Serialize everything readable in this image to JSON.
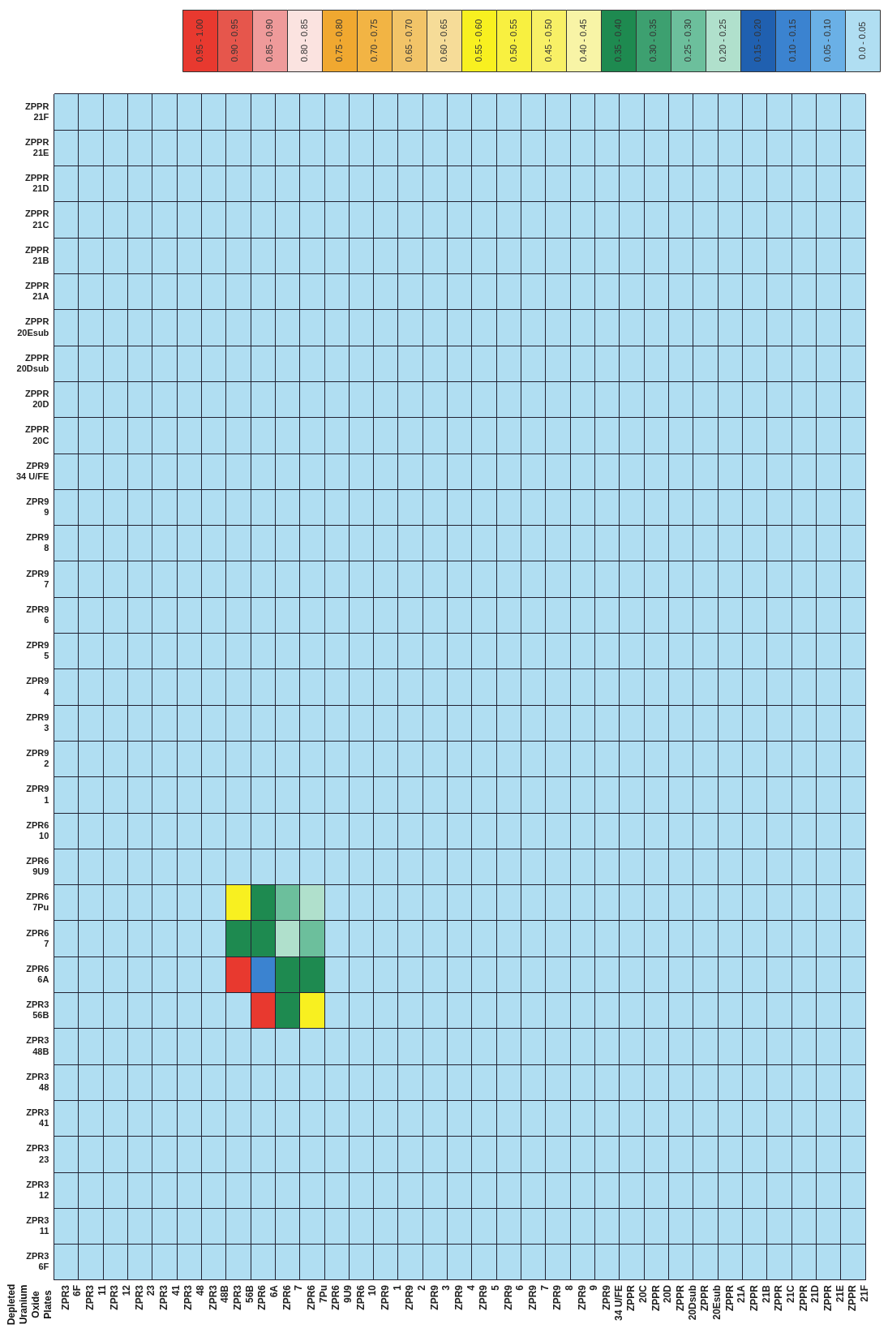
{
  "chart_data": {
    "type": "heatmap",
    "title": "Depleted Uranium Oxide Plates",
    "categories": [
      "ZPR3 6F",
      "ZPR3 11",
      "ZPR3 12",
      "ZPR3 23",
      "ZPR3 41",
      "ZPR3 48",
      "ZPR3 48B",
      "ZPR3 56B",
      "ZPR6 6A",
      "ZPR6 7",
      "ZPR6 7Pu",
      "ZPR6 9U9",
      "ZPR6 10",
      "ZPR9 1",
      "ZPR9 2",
      "ZPR9 3",
      "ZPR9 4",
      "ZPR9 5",
      "ZPR9 6",
      "ZPR9 7",
      "ZPR9 8",
      "ZPR9 9",
      "ZPR9 34 U/FE",
      "ZPPR 20C",
      "ZPPR 20D",
      "ZPPR 20Dsub",
      "ZPPR 20Esub",
      "ZPPR 21A",
      "ZPPR 21B",
      "ZPPR 21C",
      "ZPPR 21D",
      "ZPPR 21E",
      "ZPPR 21F"
    ],
    "y_categories": [
      "ZPPR 21F",
      "ZPPR 21E",
      "ZPPR 21D",
      "ZPPR 21C",
      "ZPPR 21B",
      "ZPPR 21A",
      "ZPPR 20Esub",
      "ZPPR 20Dsub",
      "ZPPR 20D",
      "ZPPR 20C",
      "ZPR9 34 U/FE",
      "ZPR9 9",
      "ZPR9 8",
      "ZPR9 7",
      "ZPR9 6",
      "ZPR9 5",
      "ZPR9 4",
      "ZPR9 3",
      "ZPR9 2",
      "ZPR9 1",
      "ZPR6 10",
      "ZPR6 9U9",
      "ZPR6 7Pu",
      "ZPR6 7",
      "ZPR6 6A",
      "ZPR3 56B",
      "ZPR3 48B",
      "ZPR3 48",
      "ZPR3 41",
      "ZPR3 23",
      "ZPR3 12",
      "ZPR3 11",
      "ZPR3 6F"
    ],
    "cells": [
      [
        0.025,
        0.025,
        0.025,
        0.025,
        0.025,
        0.025,
        0.025,
        0.025,
        0.025,
        0.025,
        0.025,
        0.025,
        0.025,
        0.025,
        0.025,
        0.025,
        0.025,
        0.025,
        0.025,
        0.025,
        0.025,
        0.025,
        0.025,
        0.025,
        0.025,
        0.025,
        0.025,
        0.025,
        0.025,
        0.025,
        0.025,
        0.025,
        0.025
      ],
      [
        0.025,
        0.025,
        0.025,
        0.025,
        0.025,
        0.025,
        0.025,
        0.025,
        0.025,
        0.025,
        0.025,
        0.025,
        0.025,
        0.025,
        0.025,
        0.025,
        0.025,
        0.025,
        0.025,
        0.025,
        0.025,
        0.025,
        0.025,
        0.025,
        0.025,
        0.025,
        0.025,
        0.025,
        0.025,
        0.025,
        0.025,
        0.025,
        0.025
      ],
      [
        0.025,
        0.025,
        0.025,
        0.025,
        0.025,
        0.025,
        0.025,
        0.025,
        0.025,
        0.025,
        0.025,
        0.025,
        0.025,
        0.025,
        0.025,
        0.025,
        0.025,
        0.025,
        0.025,
        0.025,
        0.025,
        0.025,
        0.025,
        0.025,
        0.025,
        0.025,
        0.025,
        0.025,
        0.025,
        0.025,
        0.025,
        0.025,
        0.025
      ],
      [
        0.025,
        0.025,
        0.025,
        0.025,
        0.025,
        0.025,
        0.025,
        0.025,
        0.025,
        0.025,
        0.025,
        0.025,
        0.025,
        0.025,
        0.025,
        0.025,
        0.025,
        0.025,
        0.025,
        0.025,
        0.025,
        0.025,
        0.025,
        0.025,
        0.025,
        0.025,
        0.025,
        0.025,
        0.025,
        0.025,
        0.025,
        0.025,
        0.025
      ],
      [
        0.025,
        0.025,
        0.025,
        0.025,
        0.025,
        0.025,
        0.025,
        0.025,
        0.025,
        0.025,
        0.025,
        0.025,
        0.025,
        0.025,
        0.025,
        0.025,
        0.025,
        0.025,
        0.025,
        0.025,
        0.025,
        0.025,
        0.025,
        0.025,
        0.025,
        0.025,
        0.025,
        0.025,
        0.025,
        0.025,
        0.025,
        0.025,
        0.025
      ],
      [
        0.025,
        0.025,
        0.025,
        0.025,
        0.025,
        0.025,
        0.025,
        0.025,
        0.025,
        0.025,
        0.025,
        0.025,
        0.025,
        0.025,
        0.025,
        0.025,
        0.025,
        0.025,
        0.025,
        0.025,
        0.025,
        0.025,
        0.025,
        0.025,
        0.025,
        0.025,
        0.025,
        0.025,
        0.025,
        0.025,
        0.025,
        0.025,
        0.025
      ],
      [
        0.025,
        0.025,
        0.025,
        0.025,
        0.025,
        0.025,
        0.025,
        0.025,
        0.025,
        0.025,
        0.025,
        0.025,
        0.025,
        0.025,
        0.025,
        0.025,
        0.025,
        0.025,
        0.025,
        0.025,
        0.025,
        0.025,
        0.025,
        0.025,
        0.025,
        0.025,
        0.025,
        0.025,
        0.025,
        0.025,
        0.025,
        0.025,
        0.025
      ],
      [
        0.025,
        0.025,
        0.025,
        0.025,
        0.025,
        0.025,
        0.025,
        0.025,
        0.025,
        0.025,
        0.025,
        0.025,
        0.025,
        0.025,
        0.025,
        0.025,
        0.025,
        0.025,
        0.025,
        0.025,
        0.025,
        0.025,
        0.025,
        0.025,
        0.025,
        0.025,
        0.025,
        0.025,
        0.025,
        0.025,
        0.025,
        0.025,
        0.025
      ],
      [
        0.025,
        0.025,
        0.025,
        0.025,
        0.025,
        0.025,
        0.025,
        0.025,
        0.025,
        0.025,
        0.025,
        0.025,
        0.025,
        0.025,
        0.025,
        0.025,
        0.025,
        0.025,
        0.025,
        0.025,
        0.025,
        0.025,
        0.025,
        0.025,
        0.025,
        0.025,
        0.025,
        0.025,
        0.025,
        0.025,
        0.025,
        0.025,
        0.025
      ],
      [
        0.025,
        0.025,
        0.025,
        0.025,
        0.025,
        0.025,
        0.025,
        0.025,
        0.025,
        0.025,
        0.025,
        0.025,
        0.025,
        0.025,
        0.025,
        0.025,
        0.025,
        0.025,
        0.025,
        0.025,
        0.025,
        0.025,
        0.025,
        0.025,
        0.025,
        0.025,
        0.025,
        0.025,
        0.025,
        0.025,
        0.025,
        0.025,
        0.025
      ],
      [
        0.025,
        0.025,
        0.025,
        0.025,
        0.025,
        0.025,
        0.025,
        0.025,
        0.025,
        0.025,
        0.025,
        0.025,
        0.025,
        0.025,
        0.025,
        0.025,
        0.025,
        0.025,
        0.025,
        0.025,
        0.025,
        0.025,
        0.025,
        0.025,
        0.025,
        0.025,
        0.025,
        0.025,
        0.025,
        0.025,
        0.025,
        0.025,
        0.025
      ],
      [
        0.025,
        0.025,
        0.025,
        0.025,
        0.025,
        0.025,
        0.025,
        0.025,
        0.025,
        0.025,
        0.025,
        0.025,
        0.025,
        0.025,
        0.025,
        0.025,
        0.025,
        0.025,
        0.025,
        0.025,
        0.025,
        0.025,
        0.025,
        0.025,
        0.025,
        0.025,
        0.025,
        0.025,
        0.025,
        0.025,
        0.025,
        0.025,
        0.025
      ],
      [
        0.025,
        0.025,
        0.025,
        0.025,
        0.025,
        0.025,
        0.025,
        0.025,
        0.025,
        0.025,
        0.025,
        0.025,
        0.025,
        0.025,
        0.025,
        0.025,
        0.025,
        0.025,
        0.025,
        0.025,
        0.025,
        0.025,
        0.025,
        0.025,
        0.025,
        0.025,
        0.025,
        0.025,
        0.025,
        0.025,
        0.025,
        0.025,
        0.025
      ],
      [
        0.025,
        0.025,
        0.025,
        0.025,
        0.025,
        0.025,
        0.025,
        0.025,
        0.025,
        0.025,
        0.025,
        0.025,
        0.025,
        0.025,
        0.025,
        0.025,
        0.025,
        0.025,
        0.025,
        0.025,
        0.025,
        0.025,
        0.025,
        0.025,
        0.025,
        0.025,
        0.025,
        0.025,
        0.025,
        0.025,
        0.025,
        0.025,
        0.025
      ],
      [
        0.025,
        0.025,
        0.025,
        0.025,
        0.025,
        0.025,
        0.025,
        0.025,
        0.025,
        0.025,
        0.025,
        0.025,
        0.025,
        0.025,
        0.025,
        0.025,
        0.025,
        0.025,
        0.025,
        0.025,
        0.025,
        0.025,
        0.025,
        0.025,
        0.025,
        0.025,
        0.025,
        0.025,
        0.025,
        0.025,
        0.025,
        0.025,
        0.025
      ],
      [
        0.025,
        0.025,
        0.025,
        0.025,
        0.025,
        0.025,
        0.025,
        0.025,
        0.025,
        0.025,
        0.025,
        0.025,
        0.025,
        0.025,
        0.025,
        0.025,
        0.025,
        0.025,
        0.025,
        0.025,
        0.025,
        0.025,
        0.025,
        0.025,
        0.025,
        0.025,
        0.025,
        0.025,
        0.025,
        0.025,
        0.025,
        0.025,
        0.025
      ],
      [
        0.025,
        0.025,
        0.025,
        0.025,
        0.025,
        0.025,
        0.025,
        0.025,
        0.025,
        0.025,
        0.025,
        0.025,
        0.025,
        0.025,
        0.025,
        0.025,
        0.025,
        0.025,
        0.025,
        0.025,
        0.025,
        0.025,
        0.025,
        0.025,
        0.025,
        0.025,
        0.025,
        0.025,
        0.025,
        0.025,
        0.025,
        0.025,
        0.025
      ],
      [
        0.025,
        0.025,
        0.025,
        0.025,
        0.025,
        0.025,
        0.025,
        0.025,
        0.025,
        0.025,
        0.025,
        0.025,
        0.025,
        0.025,
        0.025,
        0.025,
        0.025,
        0.025,
        0.025,
        0.025,
        0.025,
        0.025,
        0.025,
        0.025,
        0.025,
        0.025,
        0.025,
        0.025,
        0.025,
        0.025,
        0.025,
        0.025,
        0.025
      ],
      [
        0.025,
        0.025,
        0.025,
        0.025,
        0.025,
        0.025,
        0.025,
        0.025,
        0.025,
        0.025,
        0.025,
        0.025,
        0.025,
        0.025,
        0.025,
        0.025,
        0.025,
        0.025,
        0.025,
        0.025,
        0.025,
        0.025,
        0.025,
        0.025,
        0.025,
        0.025,
        0.025,
        0.025,
        0.025,
        0.025,
        0.025,
        0.025,
        0.025
      ],
      [
        0.025,
        0.025,
        0.025,
        0.025,
        0.025,
        0.025,
        0.025,
        0.025,
        0.025,
        0.025,
        0.025,
        0.025,
        0.025,
        0.025,
        0.025,
        0.025,
        0.025,
        0.025,
        0.025,
        0.025,
        0.025,
        0.025,
        0.025,
        0.025,
        0.025,
        0.025,
        0.025,
        0.025,
        0.025,
        0.025,
        0.025,
        0.025,
        0.025
      ],
      [
        0.025,
        0.025,
        0.025,
        0.025,
        0.025,
        0.025,
        0.025,
        0.025,
        0.025,
        0.025,
        0.025,
        0.025,
        0.025,
        0.025,
        0.025,
        0.025,
        0.025,
        0.025,
        0.025,
        0.025,
        0.025,
        0.025,
        0.025,
        0.025,
        0.025,
        0.025,
        0.025,
        0.025,
        0.025,
        0.025,
        0.025,
        0.025,
        0.025
      ],
      [
        0.025,
        0.025,
        0.025,
        0.025,
        0.025,
        0.025,
        0.025,
        0.025,
        0.025,
        0.025,
        0.025,
        0.025,
        0.025,
        0.025,
        0.025,
        0.025,
        0.025,
        0.025,
        0.025,
        0.025,
        0.025,
        0.025,
        0.025,
        0.025,
        0.025,
        0.025,
        0.025,
        0.025,
        0.025,
        0.025,
        0.025,
        0.025,
        0.025
      ],
      [
        0.025,
        0.025,
        0.025,
        0.025,
        0.025,
        0.025,
        0.025,
        0.575,
        0.375,
        0.275,
        0.225,
        0.025,
        0.025,
        0.025,
        0.025,
        0.025,
        0.025,
        0.025,
        0.025,
        0.025,
        0.025,
        0.025,
        0.025,
        0.025,
        0.025,
        0.025,
        0.025,
        0.025,
        0.025,
        0.025,
        0.025,
        0.025,
        0.025
      ],
      [
        0.025,
        0.025,
        0.025,
        0.025,
        0.025,
        0.025,
        0.025,
        0.375,
        0.375,
        0.225,
        0.275,
        0.025,
        0.025,
        0.025,
        0.025,
        0.025,
        0.025,
        0.025,
        0.025,
        0.025,
        0.025,
        0.025,
        0.025,
        0.025,
        0.025,
        0.025,
        0.025,
        0.025,
        0.025,
        0.025,
        0.025,
        0.025,
        0.025
      ],
      [
        0.025,
        0.025,
        0.025,
        0.025,
        0.025,
        0.025,
        0.025,
        0.975,
        0.125,
        0.375,
        0.375,
        0.025,
        0.025,
        0.025,
        0.025,
        0.025,
        0.025,
        0.025,
        0.025,
        0.025,
        0.025,
        0.025,
        0.025,
        0.025,
        0.025,
        0.025,
        0.025,
        0.025,
        0.025,
        0.025,
        0.025,
        0.025,
        0.025
      ],
      [
        0.025,
        0.025,
        0.025,
        0.025,
        0.025,
        0.025,
        0.025,
        0.025,
        0.975,
        0.375,
        0.575,
        0.025,
        0.025,
        0.025,
        0.025,
        0.025,
        0.025,
        0.025,
        0.025,
        0.025,
        0.025,
        0.025,
        0.025,
        0.025,
        0.025,
        0.025,
        0.025,
        0.025,
        0.025,
        0.025,
        0.025,
        0.025,
        0.025
      ],
      [
        0.025,
        0.025,
        0.025,
        0.025,
        0.025,
        0.025,
        0.025,
        0.025,
        0.025,
        0.025,
        0.025,
        0.025,
        0.025,
        0.025,
        0.025,
        0.025,
        0.025,
        0.025,
        0.025,
        0.025,
        0.025,
        0.025,
        0.025,
        0.025,
        0.025,
        0.025,
        0.025,
        0.025,
        0.025,
        0.025,
        0.025,
        0.025,
        0.025
      ],
      [
        0.025,
        0.025,
        0.025,
        0.025,
        0.025,
        0.025,
        0.025,
        0.025,
        0.025,
        0.025,
        0.025,
        0.025,
        0.025,
        0.025,
        0.025,
        0.025,
        0.025,
        0.025,
        0.025,
        0.025,
        0.025,
        0.025,
        0.025,
        0.025,
        0.025,
        0.025,
        0.025,
        0.025,
        0.025,
        0.025,
        0.025,
        0.025,
        0.025
      ],
      [
        0.025,
        0.025,
        0.025,
        0.025,
        0.025,
        0.025,
        0.025,
        0.025,
        0.025,
        0.025,
        0.025,
        0.025,
        0.025,
        0.025,
        0.025,
        0.025,
        0.025,
        0.025,
        0.025,
        0.025,
        0.025,
        0.025,
        0.025,
        0.025,
        0.025,
        0.025,
        0.025,
        0.025,
        0.025,
        0.025,
        0.025,
        0.025,
        0.025
      ],
      [
        0.025,
        0.025,
        0.025,
        0.025,
        0.025,
        0.025,
        0.025,
        0.025,
        0.025,
        0.025,
        0.025,
        0.025,
        0.025,
        0.025,
        0.025,
        0.025,
        0.025,
        0.025,
        0.025,
        0.025,
        0.025,
        0.025,
        0.025,
        0.025,
        0.025,
        0.025,
        0.025,
        0.025,
        0.025,
        0.025,
        0.025,
        0.025,
        0.025
      ],
      [
        0.025,
        0.025,
        0.025,
        0.025,
        0.025,
        0.025,
        0.025,
        0.025,
        0.025,
        0.025,
        0.025,
        0.025,
        0.025,
        0.025,
        0.025,
        0.025,
        0.025,
        0.025,
        0.025,
        0.025,
        0.025,
        0.025,
        0.025,
        0.025,
        0.025,
        0.025,
        0.025,
        0.025,
        0.025,
        0.025,
        0.025,
        0.025,
        0.025
      ],
      [
        0.025,
        0.025,
        0.025,
        0.025,
        0.025,
        0.025,
        0.025,
        0.025,
        0.025,
        0.025,
        0.025,
        0.025,
        0.025,
        0.025,
        0.025,
        0.025,
        0.025,
        0.025,
        0.025,
        0.025,
        0.025,
        0.025,
        0.025,
        0.025,
        0.025,
        0.025,
        0.025,
        0.025,
        0.025,
        0.025,
        0.025,
        0.025,
        0.025
      ],
      [
        0.025,
        0.025,
        0.025,
        0.025,
        0.025,
        0.025,
        0.025,
        0.025,
        0.025,
        0.025,
        0.025,
        0.025,
        0.025,
        0.025,
        0.025,
        0.025,
        0.025,
        0.025,
        0.025,
        0.025,
        0.025,
        0.025,
        0.025,
        0.025,
        0.025,
        0.025,
        0.025,
        0.025,
        0.025,
        0.025,
        0.025,
        0.025,
        0.025
      ]
    ],
    "cticks": [
      {
        "value": 0.975,
        "label": "0.95 - 1.00"
      },
      {
        "value": 0.925,
        "label": "0.90 - 0.95"
      },
      {
        "value": 0.875,
        "label": "0.85 - 0.90"
      },
      {
        "value": 0.825,
        "label": "0.80 - 0.85"
      },
      {
        "value": 0.775,
        "label": "0.75 - 0.80"
      },
      {
        "value": 0.725,
        "label": "0.70 - 0.75"
      },
      {
        "value": 0.675,
        "label": "0.65 - 0.70"
      },
      {
        "value": 0.625,
        "label": "0.60 - 0.65"
      },
      {
        "value": 0.575,
        "label": "0.55 - 0.60"
      },
      {
        "value": 0.525,
        "label": "0.50 - 0.55"
      },
      {
        "value": 0.475,
        "label": "0.45 - 0.50"
      },
      {
        "value": 0.425,
        "label": "0.40 - 0.45"
      },
      {
        "value": 0.375,
        "label": "0.35 - 0.40"
      },
      {
        "value": 0.325,
        "label": "0.30 - 0.35"
      },
      {
        "value": 0.275,
        "label": "0.25 - 0.30"
      },
      {
        "value": 0.225,
        "label": "0.20 - 0.25"
      },
      {
        "value": 0.175,
        "label": "0.15 - 0.20"
      },
      {
        "value": 0.125,
        "label": "0.10 - 0.15"
      },
      {
        "value": 0.075,
        "label": "0.05 - 0.10"
      },
      {
        "value": 0.025,
        "label": "0.0 - 0.05"
      }
    ],
    "colors": [
      "#e8392f",
      "#e6564c",
      "#ef9a9a",
      "#fbe3e0",
      "#f0a830",
      "#f2b444",
      "#f2c468",
      "#f6dc98",
      "#f8f020",
      "#f8f040",
      "#f8f066",
      "#f8f4a6",
      "#1e8a50",
      "#3da070",
      "#6cbf9c",
      "#b0e0cc",
      "#2060b0",
      "#3b83d0",
      "#6ab0e6",
      "#b0def2"
    ],
    "grid": true
  }
}
